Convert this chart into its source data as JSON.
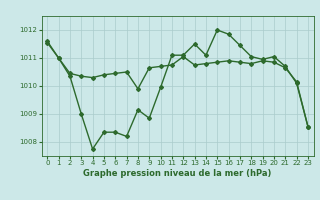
{
  "line1_x": [
    0,
    1,
    2,
    3,
    4,
    5,
    6,
    7,
    8,
    9,
    10,
    11,
    12,
    13,
    14,
    15,
    16,
    17,
    18,
    19,
    20,
    21,
    22,
    23
  ],
  "line1_y": [
    1011.6,
    1011.0,
    1010.45,
    1010.35,
    1010.3,
    1010.4,
    1010.45,
    1010.5,
    1009.9,
    1010.65,
    1010.7,
    1010.75,
    1011.05,
    1010.75,
    1010.8,
    1010.85,
    1010.9,
    1010.85,
    1010.8,
    1010.9,
    1010.85,
    1010.65,
    1010.15,
    1008.55
  ],
  "line2_x": [
    0,
    1,
    2,
    3,
    4,
    5,
    6,
    7,
    8,
    9,
    10,
    11,
    12,
    13,
    14,
    15,
    16,
    17,
    18,
    19,
    20,
    21,
    22,
    23
  ],
  "line2_y": [
    1011.55,
    1011.0,
    1010.35,
    1009.0,
    1007.75,
    1008.35,
    1008.35,
    1008.2,
    1009.15,
    1008.85,
    1009.95,
    1011.1,
    1011.1,
    1011.5,
    1011.1,
    1012.0,
    1011.85,
    1011.45,
    1011.05,
    1010.95,
    1011.05,
    1010.7,
    1010.1,
    1008.55
  ],
  "line_color": "#2d6a2d",
  "bg_color": "#cce8e8",
  "grid_color": "#aacccc",
  "xlabel": "Graphe pression niveau de la mer (hPa)",
  "xlim": [
    -0.5,
    23.5
  ],
  "ylim": [
    1007.5,
    1012.5
  ],
  "yticks": [
    1008,
    1009,
    1010,
    1011,
    1012
  ],
  "xticks": [
    0,
    1,
    2,
    3,
    4,
    5,
    6,
    7,
    8,
    9,
    10,
    11,
    12,
    13,
    14,
    15,
    16,
    17,
    18,
    19,
    20,
    21,
    22,
    23
  ],
  "marker": "D",
  "markersize": 2.0,
  "linewidth": 1.0,
  "tick_fontsize": 5.0,
  "xlabel_fontsize": 6.0
}
